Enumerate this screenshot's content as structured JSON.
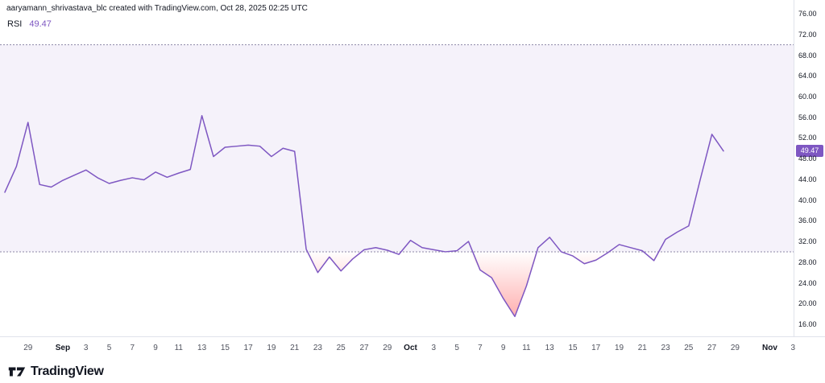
{
  "attribution": "aaryamann_shrivastava_blc created with TradingView.com, Oct 28, 2025 02:25 UTC",
  "indicator": {
    "name": "RSI",
    "value": "49.47",
    "value_color": "#7e57c2"
  },
  "logo_text": "TradingView",
  "price_axis": {
    "labels": [
      "76.00",
      "72.00",
      "68.00",
      "64.00",
      "60.00",
      "56.00",
      "52.00",
      "48.00",
      "44.00",
      "40.00",
      "36.00",
      "32.00",
      "28.00",
      "24.00",
      "20.00",
      "16.00"
    ],
    "badge": {
      "value": "49.47",
      "color": "#7e57c2"
    }
  },
  "time_axis": {
    "labels": [
      {
        "text": "29",
        "day": 2,
        "bold": false
      },
      {
        "text": "Sep",
        "day": 5,
        "bold": true
      },
      {
        "text": "3",
        "day": 7,
        "bold": false
      },
      {
        "text": "5",
        "day": 9,
        "bold": false
      },
      {
        "text": "7",
        "day": 11,
        "bold": false
      },
      {
        "text": "9",
        "day": 13,
        "bold": false
      },
      {
        "text": "11",
        "day": 15,
        "bold": false
      },
      {
        "text": "13",
        "day": 17,
        "bold": false
      },
      {
        "text": "15",
        "day": 19,
        "bold": false
      },
      {
        "text": "17",
        "day": 21,
        "bold": false
      },
      {
        "text": "19",
        "day": 23,
        "bold": false
      },
      {
        "text": "21",
        "day": 25,
        "bold": false
      },
      {
        "text": "23",
        "day": 27,
        "bold": false
      },
      {
        "text": "25",
        "day": 29,
        "bold": false
      },
      {
        "text": "27",
        "day": 31,
        "bold": false
      },
      {
        "text": "29",
        "day": 33,
        "bold": false
      },
      {
        "text": "Oct",
        "day": 35,
        "bold": true
      },
      {
        "text": "3",
        "day": 37,
        "bold": false
      },
      {
        "text": "5",
        "day": 39,
        "bold": false
      },
      {
        "text": "7",
        "day": 41,
        "bold": false
      },
      {
        "text": "9",
        "day": 43,
        "bold": false
      },
      {
        "text": "11",
        "day": 45,
        "bold": false
      },
      {
        "text": "13",
        "day": 47,
        "bold": false
      },
      {
        "text": "15",
        "day": 49,
        "bold": false
      },
      {
        "text": "17",
        "day": 51,
        "bold": false
      },
      {
        "text": "19",
        "day": 53,
        "bold": false
      },
      {
        "text": "21",
        "day": 55,
        "bold": false
      },
      {
        "text": "23",
        "day": 57,
        "bold": false
      },
      {
        "text": "25",
        "day": 59,
        "bold": false
      },
      {
        "text": "27",
        "day": 61,
        "bold": false
      },
      {
        "text": "29",
        "day": 63,
        "bold": false
      },
      {
        "text": "Nov",
        "day": 66,
        "bold": true
      },
      {
        "text": "3",
        "day": 68,
        "bold": false
      }
    ]
  },
  "chart_data": {
    "type": "line",
    "title": "RSI",
    "ylabel": "RSI",
    "legend_position": "top-left",
    "grid": false,
    "ylim": [
      13.67,
      78.64
    ],
    "upper_band": 70,
    "lower_band": 30,
    "x_start": "Aug 27",
    "x_end": "Oct 28",
    "x_interval": "1 day",
    "line_color": "#7e57c2",
    "band_fill_color": "rgba(126,87,194,0.08)",
    "band_line_color": "#8d88a7",
    "oversold_color": "#ff5252",
    "last_value": 49.47,
    "values": [
      41.5,
      46.5,
      55.0,
      43.0,
      42.5,
      43.8,
      44.8,
      45.8,
      44.3,
      43.2,
      43.8,
      44.3,
      43.9,
      45.4,
      44.4,
      45.2,
      45.9,
      56.3,
      48.4,
      50.2,
      50.4,
      50.6,
      50.4,
      48.4,
      50.0,
      49.4,
      30.5,
      26.0,
      29.0,
      26.3,
      28.6,
      30.4,
      30.8,
      30.3,
      29.5,
      32.2,
      30.8,
      30.4,
      30.0,
      30.2,
      32.0,
      26.5,
      25.0,
      21.0,
      17.5,
      23.4,
      30.8,
      32.8,
      30.0,
      29.2,
      27.7,
      28.4,
      29.8,
      31.4,
      30.8,
      30.2,
      28.3,
      32.4,
      33.8,
      35.0,
      44.0,
      52.7,
      49.47
    ]
  }
}
